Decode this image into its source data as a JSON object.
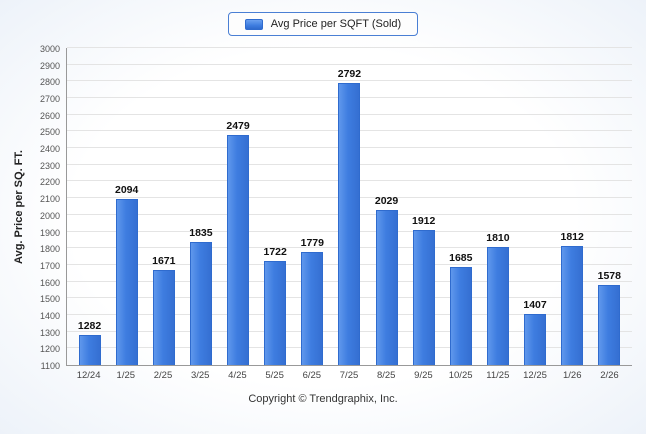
{
  "chart_data": {
    "type": "bar",
    "title": "",
    "legend": "Avg Price per SQFT (Sold)",
    "ylabel": "Avg. Price per SQ. FT.",
    "xlabel": "",
    "ylim": [
      1100,
      3000
    ],
    "ytick_step": 100,
    "grid": true,
    "legend_position": "top",
    "bar_color": "#3e7de0",
    "categories": [
      "12/24",
      "1/25",
      "2/25",
      "3/25",
      "4/25",
      "5/25",
      "6/25",
      "7/25",
      "8/25",
      "9/25",
      "10/25",
      "11/25",
      "12/25",
      "1/26",
      "2/26"
    ],
    "values": [
      1282,
      2094,
      1671,
      1835,
      2479,
      1722,
      1779,
      2792,
      2029,
      1912,
      1685,
      1810,
      1407,
      1812,
      1578
    ]
  },
  "footer": {
    "copyright": "Copyright © Trendgraphix, Inc."
  }
}
